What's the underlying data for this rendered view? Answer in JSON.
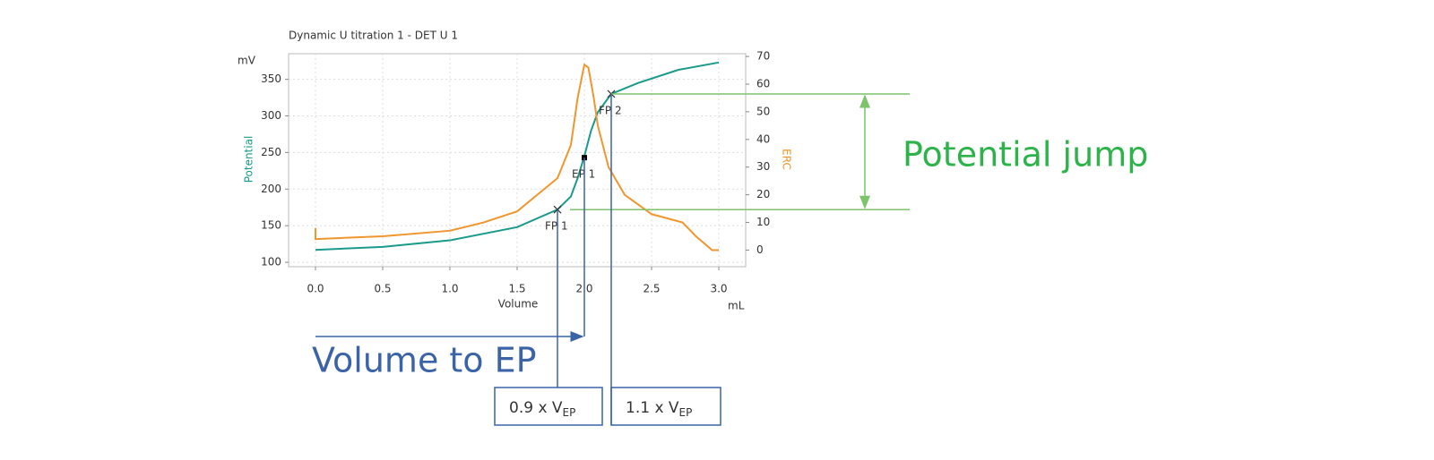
{
  "chart_data": {
    "type": "line",
    "title": "Dynamic U titration 1 - DET U  1",
    "x_label": "Volume",
    "x_unit": "mL",
    "y_unit": "mV",
    "y_label": "Potential",
    "y2_label": "ERC",
    "xlim": [
      -0.2,
      3.2
    ],
    "ylim": [
      94,
      385
    ],
    "y2lim": [
      -6,
      71
    ],
    "xticks": [
      {
        "value": 0,
        "label": "0.0"
      },
      {
        "value": 0.5,
        "label": "0.5"
      },
      {
        "value": 1,
        "label": "1.0"
      },
      {
        "value": 1.5,
        "label": "1.5"
      },
      {
        "value": 2,
        "label": "2.0"
      },
      {
        "value": 2.5,
        "label": "2.5"
      },
      {
        "value": 3,
        "label": "3.0"
      }
    ],
    "yticks": [
      100,
      150,
      200,
      250,
      300,
      350
    ],
    "y2ticks": [
      0,
      10,
      20,
      30,
      40,
      50,
      60,
      70
    ],
    "grid": true,
    "series": [
      {
        "name": "Potential",
        "color": "#1a9a8a",
        "x": [
          0,
          0.5,
          1.0,
          1.5,
          1.8,
          1.9,
          1.95,
          2.0,
          2.05,
          2.1,
          2.2,
          2.4,
          2.7,
          3.0
        ],
        "values": [
          117,
          121,
          130,
          148,
          172,
          190,
          215,
          245,
          280,
          305,
          330,
          345,
          363,
          373
        ]
      },
      {
        "name": "ERC",
        "color": "#f0962e",
        "axis": "y2",
        "x": [
          0,
          0,
          0.01,
          0.5,
          1.0,
          1.25,
          1.5,
          1.65,
          1.8,
          1.9,
          1.95,
          2.0,
          2.03,
          2.07,
          2.1,
          2.18,
          2.3,
          2.5,
          2.73,
          2.83,
          2.95,
          3.0
        ],
        "values": [
          8,
          4,
          4,
          5,
          7,
          10,
          14,
          20,
          26,
          38,
          55,
          67,
          66,
          55,
          45,
          30,
          20,
          13,
          10,
          5,
          0,
          0
        ]
      }
    ],
    "points": [
      {
        "label": "FP 1",
        "x": 1.8,
        "y": 172,
        "marker": "x"
      },
      {
        "label": "EP 1",
        "x": 2.0,
        "y": 243,
        "marker": "square"
      },
      {
        "label": "FP 2",
        "x": 2.2,
        "y": 330,
        "marker": "x"
      }
    ],
    "annotations": {
      "jump": "Potential jump",
      "volume": "Volume to EP",
      "low_box": {
        "text": "0.9 x V",
        "sub": "EP"
      },
      "high_box": {
        "text": "1.1 x V",
        "sub": "EP"
      }
    }
  }
}
